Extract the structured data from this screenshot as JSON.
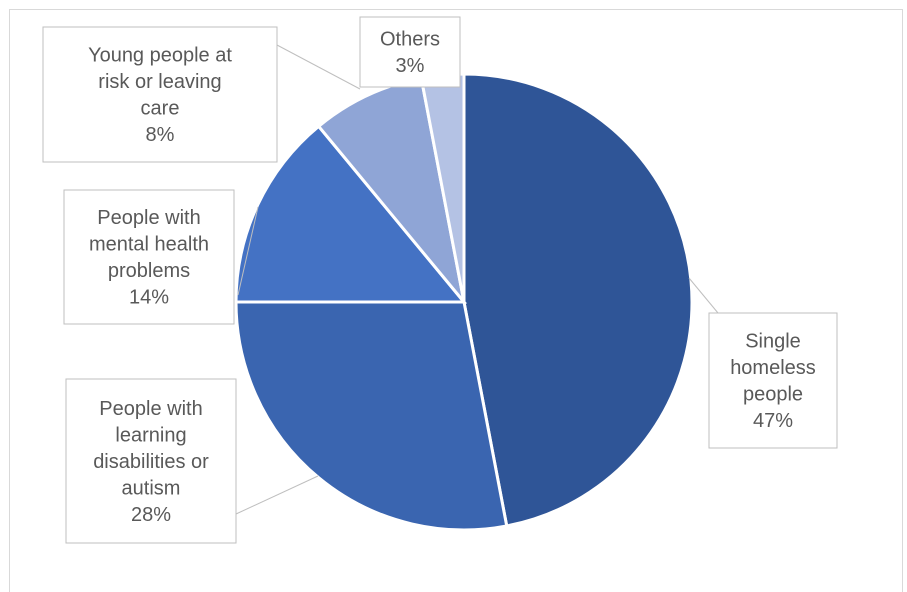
{
  "chart_data": {
    "type": "pie",
    "title": "",
    "slices": [
      {
        "label_lines": [
          "Single",
          "homeless",
          "people"
        ],
        "percent_label": "47%",
        "value": 47,
        "color": "#2f5597"
      },
      {
        "label_lines": [
          "People with",
          "learning",
          "disabilities or",
          "autism"
        ],
        "percent_label": "28%",
        "value": 28,
        "color": "#3a65b0"
      },
      {
        "label_lines": [
          "People with",
          "mental health",
          "problems"
        ],
        "percent_label": "14%",
        "value": 14,
        "color": "#4472c4"
      },
      {
        "label_lines": [
          "Young people at",
          "risk or leaving",
          "care"
        ],
        "percent_label": "8%",
        "value": 8,
        "color": "#8fa5d6"
      },
      {
        "label_lines": [
          "Others"
        ],
        "percent_label": "3%",
        "value": 3,
        "color": "#b4c2e4"
      }
    ],
    "legend": "none",
    "data_labels": "callouts"
  }
}
